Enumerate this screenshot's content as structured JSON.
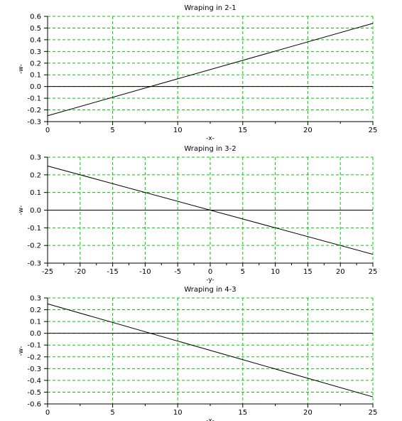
{
  "chart_data": [
    {
      "type": "line",
      "title": "Wraping in 2-1",
      "xlabel": "-x-",
      "ylabel": "-w-",
      "xlim": [
        0,
        25
      ],
      "ylim": [
        -0.3,
        0.6
      ],
      "xticks": [
        0,
        5,
        10,
        15,
        20,
        25
      ],
      "xtick_labels": [
        "0",
        "5",
        "10",
        "15",
        "20",
        "25"
      ],
      "yticks": [
        -0.3,
        -0.2,
        -0.1,
        0.0,
        0.1,
        0.2,
        0.3,
        0.4,
        0.5,
        0.6
      ],
      "ytick_labels": [
        "-0.3",
        "-0.2",
        "-0.1",
        "0.0",
        "0.1",
        "0.2",
        "0.3",
        "0.4",
        "0.5",
        "0.6"
      ],
      "grid": true,
      "grid_color": "#00cc00",
      "zero_line": true,
      "series": [
        {
          "x": [
            0,
            25
          ],
          "values": [
            -0.25,
            0.54
          ],
          "color": "#000000"
        }
      ]
    },
    {
      "type": "line",
      "title": "Wraping in 3-2",
      "xlabel": "-y-",
      "ylabel": "-w-",
      "xlim": [
        -25,
        25
      ],
      "ylim": [
        -0.3,
        0.3
      ],
      "xticks": [
        -25,
        -20,
        -15,
        -10,
        -5,
        0,
        5,
        10,
        15,
        20,
        25
      ],
      "xtick_labels": [
        "-25",
        "-20",
        "-15",
        "-10",
        "-5",
        "0",
        "5",
        "10",
        "15",
        "20",
        "25"
      ],
      "yticks": [
        -0.3,
        -0.2,
        -0.1,
        0.0,
        0.1,
        0.2,
        0.3
      ],
      "ytick_labels": [
        "-0.3",
        "-0.2",
        "-0.1",
        "0.0",
        "0.1",
        "0.2",
        "0.3"
      ],
      "grid": true,
      "grid_color": "#00cc00",
      "zero_line": true,
      "series": [
        {
          "x": [
            -25,
            25
          ],
          "values": [
            0.25,
            -0.25
          ],
          "color": "#000000"
        }
      ]
    },
    {
      "type": "line",
      "title": "Wraping in 4-3",
      "xlabel": "-x-",
      "ylabel": "-w-",
      "xlim": [
        0,
        25
      ],
      "ylim": [
        -0.6,
        0.3
      ],
      "xticks": [
        0,
        5,
        10,
        15,
        20,
        25
      ],
      "xtick_labels": [
        "0",
        "5",
        "10",
        "15",
        "20",
        "25"
      ],
      "yticks": [
        -0.6,
        -0.5,
        -0.4,
        -0.3,
        -0.2,
        -0.1,
        0.0,
        0.1,
        0.2,
        0.3
      ],
      "ytick_labels": [
        "-0.6",
        "-0.5",
        "-0.4",
        "-0.3",
        "-0.2",
        "-0.1",
        "0.0",
        "0.1",
        "0.2",
        "0.3"
      ],
      "grid": true,
      "grid_color": "#00cc00",
      "zero_line": true,
      "series": [
        {
          "x": [
            0,
            25
          ],
          "values": [
            0.25,
            -0.54
          ],
          "color": "#000000"
        }
      ]
    }
  ]
}
